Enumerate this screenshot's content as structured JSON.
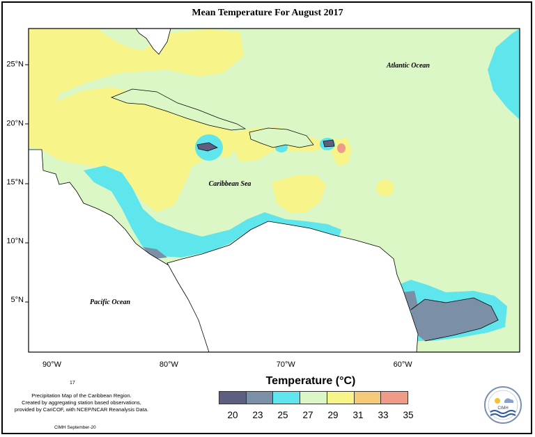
{
  "title": "Mean Temperature For August 2017",
  "map": {
    "lon_range": [
      -92,
      -50
    ],
    "lat_range": [
      0.5,
      28
    ],
    "longitude_ticks": [
      {
        "lon": -90,
        "label": "90°W"
      },
      {
        "lon": -80,
        "label": "80°W"
      },
      {
        "lon": -70,
        "label": "70°W"
      },
      {
        "lon": -60,
        "label": "60°W"
      }
    ],
    "latitude_ticks": [
      {
        "lat": 25,
        "label": "25°N"
      },
      {
        "lat": 20,
        "label": "20°N"
      },
      {
        "lat": 15,
        "label": "15°N"
      },
      {
        "lat": 10,
        "label": "10°N"
      },
      {
        "lat": 5,
        "label": "5°N"
      }
    ],
    "labels": {
      "atlantic": "Atlantic Ocean",
      "caribbean": "Caribbean Sea",
      "pacific": "Pacific Ocean"
    }
  },
  "legend": {
    "title": "Temperature (°C)",
    "colors": [
      "#5e5f80",
      "#7b8fa6",
      "#5ee6ec",
      "#dcf7c6",
      "#f7f589",
      "#f5c97a",
      "#ee9b8a"
    ],
    "tick_labels": [
      "20",
      "23",
      "25",
      "27",
      "29",
      "31",
      "33",
      "35"
    ]
  },
  "credit": {
    "line1": "Precipitation Map of the Caribbean Region.",
    "line2": "Created by aggregating station based observations,",
    "line3": "provided by CariCOF, with NCEP/NCAR Reanalysis Data.",
    "figure_number": "17",
    "cimh_note": "CIMH September-20"
  },
  "logo": {
    "text": "CIMH"
  }
}
